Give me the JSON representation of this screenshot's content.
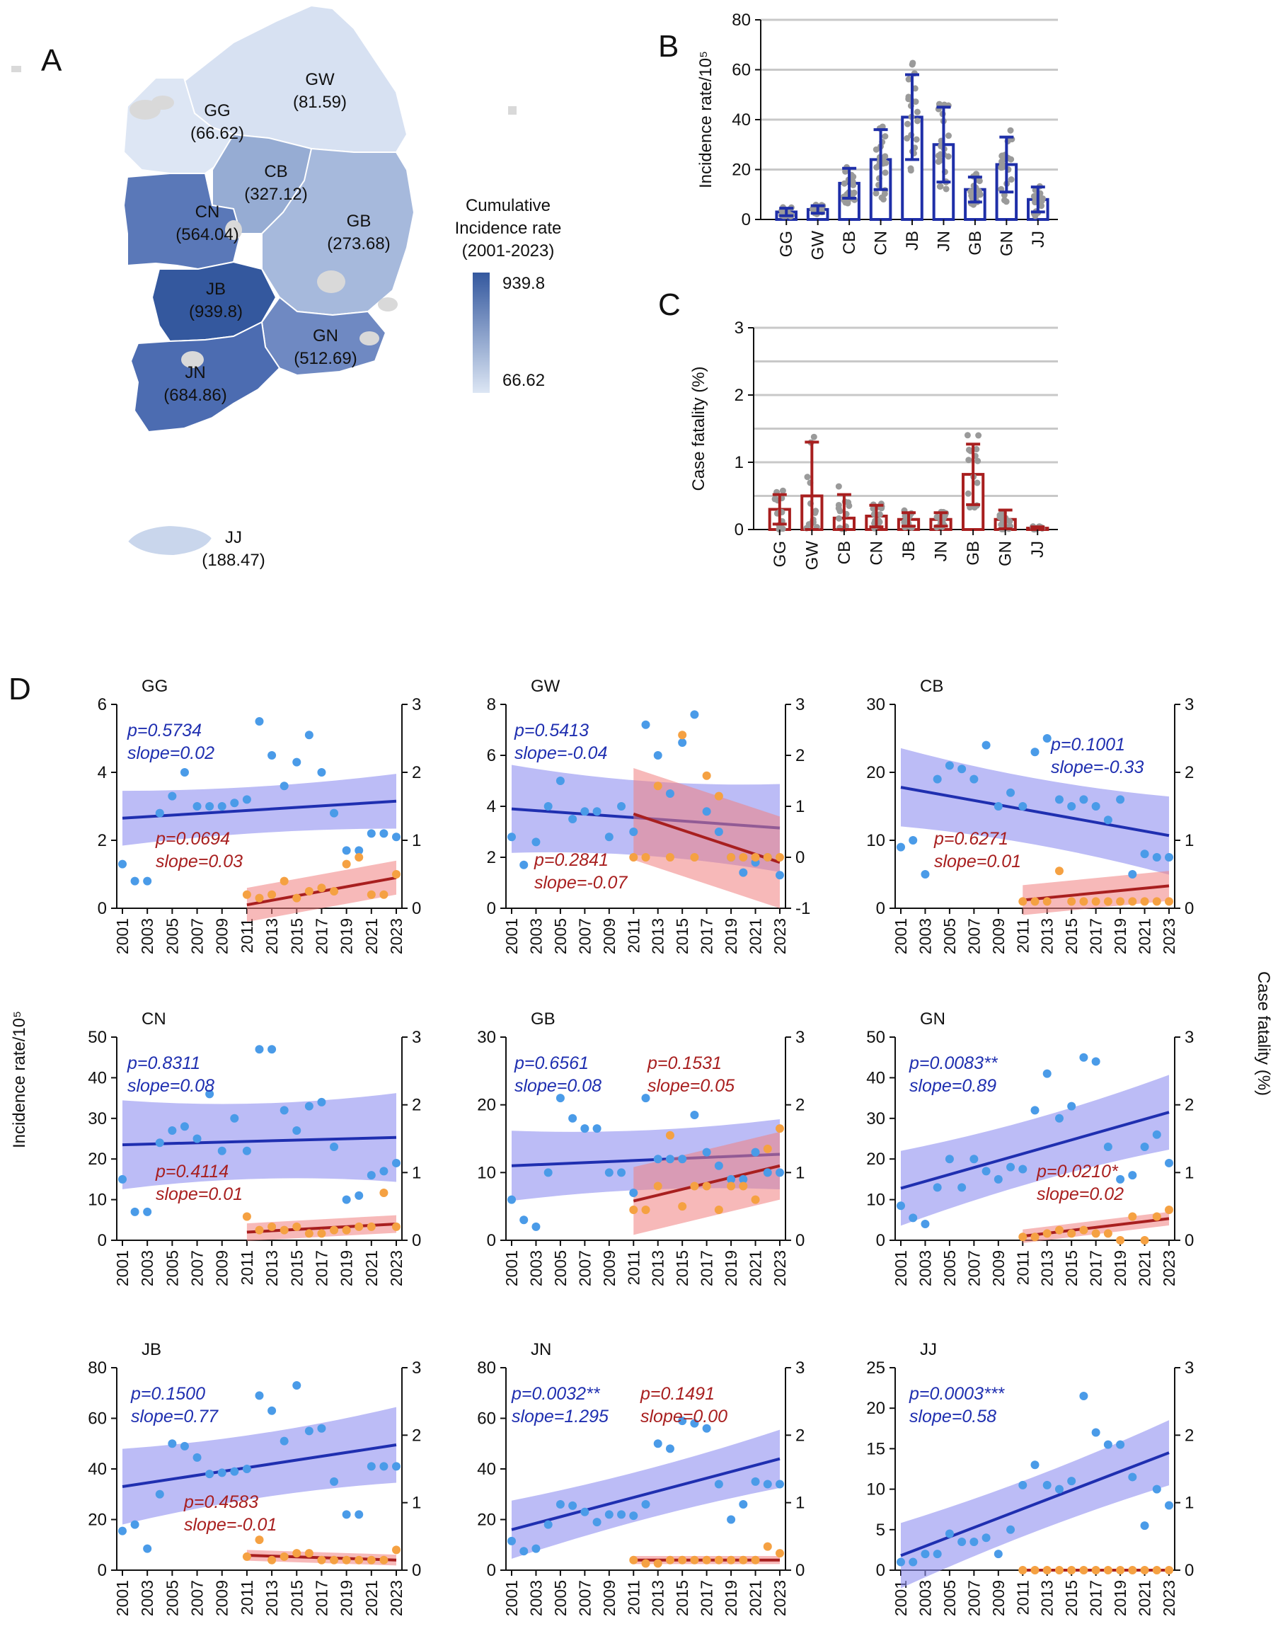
{
  "panels": {
    "a": "A",
    "b": "B",
    "c": "C",
    "d": "D"
  },
  "map": {
    "legend_title": [
      "Cumulative",
      "Incidence rate",
      "(2001-2023)"
    ],
    "legend_max": "939.8",
    "legend_min": "66.62",
    "color_high": "#34589e",
    "color_low": "#dce6f4",
    "regions": [
      {
        "code": "GG",
        "value": "(66.62)"
      },
      {
        "code": "GW",
        "value": "(81.59)"
      },
      {
        "code": "CB",
        "value": "(327.12)"
      },
      {
        "code": "CN",
        "value": "(564.04)"
      },
      {
        "code": "GB",
        "value": "(273.68)"
      },
      {
        "code": "JB",
        "value": "(939.8)"
      },
      {
        "code": "GN",
        "value": "(512.69)"
      },
      {
        "code": "JN",
        "value": "(684.86)"
      },
      {
        "code": "JJ",
        "value": "(188.47)"
      }
    ]
  },
  "chart_data": [
    {
      "id": "B",
      "type": "bar",
      "color": "#1f2fa8",
      "ylabel": "Incidence rate/10⁵",
      "yticks": [
        0,
        20,
        40,
        60,
        80
      ],
      "ylim": [
        0,
        80
      ],
      "categories": [
        "GG",
        "GW",
        "CB",
        "CN",
        "JB",
        "JN",
        "GB",
        "GN",
        "JJ"
      ],
      "values": [
        3,
        4,
        14.5,
        24,
        41,
        30,
        12,
        22,
        8
      ],
      "errors": [
        1.5,
        1.5,
        6,
        12,
        17,
        15,
        5,
        11,
        5
      ]
    },
    {
      "id": "C",
      "type": "bar",
      "color": "#a81f1f",
      "ylabel": "Case fatality (%)",
      "yticks": [
        0,
        1,
        2,
        3
      ],
      "ylim": [
        0,
        3
      ],
      "categories": [
        "GG",
        "GW",
        "CB",
        "CN",
        "JB",
        "JN",
        "GB",
        "GN",
        "JJ"
      ],
      "values": [
        0.3,
        0.5,
        0.17,
        0.2,
        0.15,
        0.15,
        0.82,
        0.15,
        0.02
      ],
      "errors": [
        0.22,
        0.8,
        0.35,
        0.16,
        0.1,
        0.1,
        0.45,
        0.14,
        0.02
      ]
    },
    {
      "id": "D",
      "type": "scatter",
      "ylabel_left": "Incidence rate/10⁵",
      "ylabel_right": "Case fatality (%)",
      "xticks": [
        "2001",
        "2003",
        "2005",
        "2007",
        "2009",
        "2011",
        "2013",
        "2015",
        "2017",
        "2019",
        "2021",
        "2023"
      ],
      "blue_color": "#1f2fb0",
      "red_color": "#a81f1f",
      "subplots": [
        {
          "name": "GG",
          "left_ticks": [
            0,
            2,
            4,
            6
          ],
          "left_max": 6,
          "right_ticks": [
            0,
            1,
            2,
            3
          ],
          "right_min": 0,
          "right_max": 3,
          "blue": {
            "p": "p=0.5734",
            "slope": "slope=0.02",
            "start": 2.65,
            "end": 3.15,
            "band": 0.7
          },
          "red": {
            "p": "p=0.0694",
            "slope": "slope=0.03",
            "start": 0.05,
            "end": 0.45,
            "band": 0.25
          },
          "incidence": [
            1.3,
            0.8,
            0.8,
            2.8,
            3.3,
            4,
            3,
            3,
            3,
            3.1,
            3.2,
            5.5,
            4.5,
            3.6,
            4.3,
            5.1,
            4,
            2.8,
            1.7,
            1.7,
            2.2,
            2.2,
            2.1
          ],
          "fatality": [
            0.2,
            0.15,
            0.2,
            0.4,
            0.15,
            0.25,
            0.3,
            0.25,
            0.65,
            0.75,
            0.2,
            0.2,
            0.5
          ]
        },
        {
          "name": "GW",
          "left_ticks": [
            0,
            2,
            4,
            6,
            8
          ],
          "left_max": 8,
          "right_ticks": [
            -1,
            0,
            1,
            2,
            3
          ],
          "right_min": -1,
          "right_max": 3,
          "blue": {
            "p": "p=0.5413",
            "slope": "slope=-0.04",
            "start": 3.9,
            "end": 3.15,
            "band": 1.5
          },
          "red": {
            "p": "p=0.2841",
            "slope": "slope=-0.07",
            "start": 0.85,
            "end": -0.1,
            "band": 0.9
          },
          "incidence": [
            2.8,
            1.7,
            2.6,
            4,
            5,
            3.5,
            3.8,
            3.8,
            2.8,
            4,
            3,
            7.2,
            6,
            4.5,
            6.5,
            7.6,
            3.8,
            3,
            2,
            1.4,
            1.8,
            2,
            1.3
          ],
          "fatality": [
            0,
            0,
            1.4,
            0,
            2.4,
            0,
            1.6,
            1.2,
            0,
            0,
            0,
            0,
            0
          ]
        },
        {
          "name": "CB",
          "left_ticks": [
            0,
            10,
            20,
            30
          ],
          "left_max": 30,
          "right_ticks": [
            0,
            1,
            2,
            3
          ],
          "right_min": 0,
          "right_max": 3,
          "blue": {
            "p": "p=0.1001",
            "slope": "slope=-0.33",
            "start": 17.8,
            "end": 10.7,
            "band": 5
          },
          "red": {
            "p": "p=0.6271",
            "slope": "slope=0.01",
            "start": 0.12,
            "end": 0.33,
            "band": 0.22
          },
          "incidence": [
            9,
            10,
            5,
            19,
            21,
            20.5,
            19,
            24,
            15,
            17,
            15,
            23,
            25,
            16,
            15,
            16,
            15,
            13,
            16,
            5,
            8,
            7.5,
            7.5
          ],
          "fatality": [
            0.1,
            0.1,
            0.1,
            0.55,
            0.1,
            0.1,
            0.1,
            0.1,
            0.1,
            0.1,
            0.1,
            0.1,
            0.1
          ]
        },
        {
          "name": "CN",
          "left_ticks": [
            0,
            10,
            20,
            30,
            40,
            50
          ],
          "left_max": 50,
          "right_ticks": [
            0,
            1,
            2,
            3
          ],
          "right_min": 0,
          "right_max": 3,
          "blue": {
            "p": "p=0.8311",
            "slope": "slope=0.08",
            "start": 23.5,
            "end": 25.3,
            "band": 9.5
          },
          "red": {
            "p": "p=0.4114",
            "slope": "slope=0.01",
            "start": 0.12,
            "end": 0.24,
            "band": 0.13
          },
          "incidence": [
            15,
            7,
            7,
            24,
            27,
            28,
            25,
            36,
            22,
            30,
            22,
            47,
            47,
            32,
            27,
            33,
            34,
            23,
            10,
            11,
            16,
            17,
            19
          ],
          "fatality": [
            0.35,
            0.15,
            0.2,
            0.15,
            0.2,
            0.1,
            0.1,
            0.15,
            0.15,
            0.2,
            0.2,
            0.7,
            0.2
          ]
        },
        {
          "name": "GB",
          "left_ticks": [
            0,
            10,
            20,
            30
          ],
          "left_max": 30,
          "right_ticks": [
            0,
            1,
            2,
            3
          ],
          "right_min": 0,
          "right_max": 3,
          "blue": {
            "p": "p=0.6561",
            "slope": "slope=0.08",
            "start": 11,
            "end": 12.7,
            "band": 4.5
          },
          "red": {
            "p": "p=0.1531",
            "slope": "slope=0.05",
            "start": 0.58,
            "end": 1.1,
            "band": 0.5
          },
          "incidence": [
            6,
            3,
            2,
            10,
            21,
            18,
            16.5,
            16.5,
            10,
            10,
            7,
            21,
            12,
            12,
            12,
            18.5,
            13,
            11,
            9,
            9,
            13,
            10,
            10
          ],
          "fatality": [
            0.45,
            0.45,
            0.8,
            1.55,
            0.5,
            0.8,
            0.8,
            0.45,
            0.8,
            0.8,
            0.6,
            1.35,
            1.65
          ]
        },
        {
          "name": "GN",
          "left_ticks": [
            0,
            10,
            20,
            30,
            40,
            50
          ],
          "left_max": 50,
          "right_ticks": [
            0,
            1,
            2,
            3
          ],
          "right_min": 0,
          "right_max": 3,
          "blue": {
            "p": "p=0.0083**",
            "slope": "slope=0.89",
            "start": 12.8,
            "end": 31.5,
            "band": 8
          },
          "red": {
            "p": "p=0.0210*",
            "slope": "slope=0.02",
            "start": 0.06,
            "end": 0.32,
            "band": 0.1
          },
          "incidence": [
            8.5,
            5.5,
            4,
            13,
            20,
            13,
            20,
            17,
            15,
            18,
            17.5,
            32,
            41,
            30,
            33,
            45,
            44,
            23,
            15,
            16,
            23,
            26,
            19
          ],
          "fatality": [
            0.05,
            0.05,
            0.1,
            0.15,
            0.1,
            0.15,
            0.1,
            0.1,
            0,
            0.35,
            0,
            0.35,
            0.45
          ]
        },
        {
          "name": "JB",
          "left_ticks": [
            0,
            20,
            40,
            60,
            80
          ],
          "left_max": 80,
          "right_ticks": [
            0,
            1,
            2,
            3
          ],
          "right_min": 0,
          "right_max": 3,
          "blue": {
            "p": "p=0.1500",
            "slope": "slope=0.77",
            "start": 33,
            "end": 49.5,
            "band": 13
          },
          "red": {
            "p": "p=0.4583",
            "slope": "slope=-0.01",
            "start": 0.22,
            "end": 0.15,
            "band": 0.08
          },
          "incidence": [
            15.5,
            18,
            8.5,
            30,
            50,
            49,
            44.5,
            38,
            38.5,
            39,
            40,
            69,
            63,
            51,
            73,
            55,
            56,
            35,
            22,
            22,
            41,
            41,
            41
          ],
          "fatality": [
            0.2,
            0.45,
            0.15,
            0.2,
            0.25,
            0.25,
            0.15,
            0.15,
            0.15,
            0.15,
            0.15,
            0.15,
            0.3
          ]
        },
        {
          "name": "JN",
          "left_ticks": [
            0,
            20,
            40,
            60,
            80
          ],
          "left_max": 80,
          "right_ticks": [
            0,
            1,
            2,
            3
          ],
          "right_min": 0,
          "right_max": 3,
          "blue": {
            "p": "p=0.0032**",
            "slope": "slope=1.295",
            "start": 16,
            "end": 44,
            "band": 10
          },
          "red": {
            "p": "p=0.1491",
            "slope": "slope=0.00",
            "start": 0.15,
            "end": 0.15,
            "band": 0.06
          },
          "incidence": [
            11.5,
            7.5,
            8.5,
            18,
            26,
            25.5,
            23,
            19,
            22,
            22,
            21.5,
            26,
            50,
            48,
            59,
            58,
            56,
            34,
            20,
            26,
            35,
            34,
            34
          ],
          "fatality": [
            0.15,
            0.1,
            0.1,
            0.15,
            0.15,
            0.15,
            0.15,
            0.15,
            0.15,
            0.15,
            0.15,
            0.35,
            0.25
          ]
        },
        {
          "name": "JJ",
          "left_ticks": [
            0,
            5,
            10,
            15,
            20,
            25
          ],
          "left_max": 25,
          "right_ticks": [
            0,
            1,
            2,
            3
          ],
          "right_min": 0,
          "right_max": 3,
          "blue": {
            "p": "p=0.0003***",
            "slope": "slope=0.58",
            "start": 1.8,
            "end": 14.5,
            "band": 3.5
          },
          "red": {
            "p": "",
            "slope": "",
            "start": 0,
            "end": 0,
            "band": 0
          },
          "incidence": [
            1,
            1,
            2,
            2,
            4.5,
            3.5,
            3.5,
            4,
            2,
            5,
            10.5,
            13,
            10.5,
            10,
            11,
            21.5,
            17,
            15.5,
            15.5,
            11.5,
            5.5,
            10,
            8
          ],
          "fatality": [
            0,
            0,
            0,
            0,
            0,
            0,
            0,
            0,
            0,
            0,
            0,
            0,
            0
          ]
        }
      ]
    }
  ]
}
